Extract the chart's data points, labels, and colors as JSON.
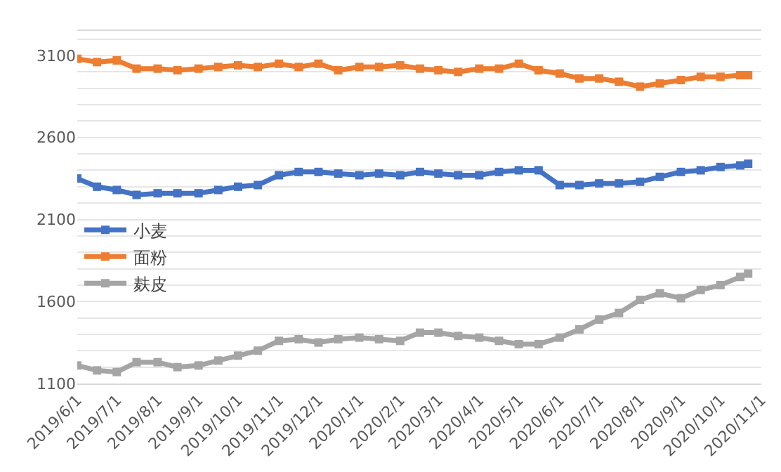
{
  "chart_data": {
    "type": "line",
    "x": [
      "2019-06-01",
      "2019-06-16",
      "2019-07-01",
      "2019-07-16",
      "2019-08-01",
      "2019-08-16",
      "2019-09-01",
      "2019-09-16",
      "2019-10-01",
      "2019-10-16",
      "2019-11-01",
      "2019-11-16",
      "2019-12-01",
      "2019-12-16",
      "2020-01-01",
      "2020-01-16",
      "2020-02-01",
      "2020-02-16",
      "2020-03-01",
      "2020-03-16",
      "2020-04-01",
      "2020-04-16",
      "2020-05-01",
      "2020-05-16",
      "2020-06-01",
      "2020-06-16",
      "2020-07-01",
      "2020-07-16",
      "2020-08-01",
      "2020-08-16",
      "2020-09-01",
      "2020-09-16",
      "2020-10-01",
      "2020-10-16",
      "2020-10-22"
    ],
    "series": [
      {
        "name": "小麦",
        "color": "#4472c4",
        "values": [
          2350,
          2300,
          2280,
          2250,
          2260,
          2260,
          2260,
          2280,
          2300,
          2310,
          2370,
          2390,
          2390,
          2380,
          2370,
          2380,
          2370,
          2390,
          2380,
          2370,
          2370,
          2390,
          2400,
          2400,
          2310,
          2310,
          2320,
          2320,
          2330,
          2360,
          2390,
          2400,
          2420,
          2430,
          2440
        ]
      },
      {
        "name": "面粉",
        "color": "#ed7d31",
        "values": [
          3080,
          3060,
          3070,
          3020,
          3020,
          3010,
          3020,
          3030,
          3040,
          3030,
          3050,
          3030,
          3050,
          3010,
          3030,
          3030,
          3040,
          3020,
          3010,
          3000,
          3020,
          3020,
          3050,
          3010,
          2990,
          2960,
          2960,
          2940,
          2910,
          2930,
          2950,
          2970,
          2970,
          2980,
          2980
        ]
      },
      {
        "name": "麸皮",
        "color": "#a5a5a5",
        "values": [
          1210,
          1180,
          1170,
          1230,
          1230,
          1200,
          1210,
          1240,
          1270,
          1300,
          1360,
          1370,
          1350,
          1370,
          1380,
          1370,
          1360,
          1410,
          1410,
          1390,
          1380,
          1360,
          1340,
          1340,
          1380,
          1430,
          1490,
          1530,
          1610,
          1650,
          1620,
          1670,
          1700,
          1750,
          1770
        ]
      }
    ],
    "xlim": [
      "2019-06-01",
      "2020-11-01"
    ],
    "xticks": [
      {
        "value": "2019-06-01",
        "label": "2019/6/1"
      },
      {
        "value": "2019-07-01",
        "label": "2019/7/1"
      },
      {
        "value": "2019-08-01",
        "label": "2019/8/1"
      },
      {
        "value": "2019-09-01",
        "label": "2019/9/1"
      },
      {
        "value": "2019-10-01",
        "label": "2019/10/1"
      },
      {
        "value": "2019-11-01",
        "label": "2019/11/1"
      },
      {
        "value": "2019-12-01",
        "label": "2019/12/1"
      },
      {
        "value": "2020-01-01",
        "label": "2020/1/1"
      },
      {
        "value": "2020-02-01",
        "label": "2020/2/1"
      },
      {
        "value": "2020-03-01",
        "label": "2020/3/1"
      },
      {
        "value": "2020-04-01",
        "label": "2020/4/1"
      },
      {
        "value": "2020-05-01",
        "label": "2020/5/1"
      },
      {
        "value": "2020-06-01",
        "label": "2020/6/1"
      },
      {
        "value": "2020-07-01",
        "label": "2020/7/1"
      },
      {
        "value": "2020-08-01",
        "label": "2020/8/1"
      },
      {
        "value": "2020-09-01",
        "label": "2020/9/1"
      },
      {
        "value": "2020-10-01",
        "label": "2020/10/1"
      },
      {
        "value": "2020-11-01",
        "label": "2020/11/1"
      }
    ],
    "ylim": [
      1100,
      3250
    ],
    "yticks": [
      1100,
      {
        "value": 1200,
        "label": null
      },
      {
        "value": 1300,
        "label": null
      },
      {
        "value": 1400,
        "label": null
      },
      {
        "value": 1500,
        "label": null
      },
      1600,
      {
        "value": 1700,
        "label": null
      },
      {
        "value": 1800,
        "label": null
      },
      {
        "value": 1900,
        "label": null
      },
      {
        "value": 2000,
        "label": null
      },
      2100,
      {
        "value": 2200,
        "label": null
      },
      {
        "value": 2300,
        "label": null
      },
      {
        "value": 2400,
        "label": null
      },
      {
        "value": 2500,
        "label": null
      },
      2600,
      {
        "value": 2700,
        "label": null
      },
      {
        "value": 2800,
        "label": null
      },
      {
        "value": 2900,
        "label": null
      },
      {
        "value": 3000,
        "label": null
      },
      3100,
      {
        "value": 3200,
        "label": null
      }
    ],
    "grid": "y",
    "legend": "left",
    "marker": "square",
    "line_style": "solid"
  }
}
